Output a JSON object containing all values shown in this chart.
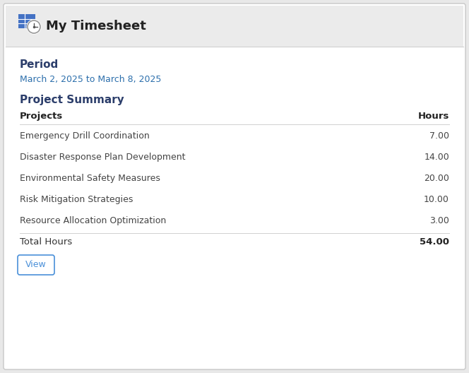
{
  "title": "My Timesheet",
  "header_bg": "#ebebeb",
  "body_bg": "#ffffff",
  "outer_bg": "#e8e8e8",
  "period_label": "Period",
  "period_date": "March 2, 2025 to March 8, 2025",
  "section_title": "Project Summary",
  "col_headers": [
    "Projects",
    "Hours"
  ],
  "projects": [
    [
      "Emergency Drill Coordination",
      "7.00"
    ],
    [
      "Disaster Response Plan Development",
      "14.00"
    ],
    [
      "Environmental Safety Measures",
      "20.00"
    ],
    [
      "Risk Mitigation Strategies",
      "10.00"
    ],
    [
      "Resource Allocation Optimization",
      "3.00"
    ]
  ],
  "total_label": "Total Hours",
  "total_value": "54.00",
  "button_label": "View",
  "blue_heading": "#2c3e6b",
  "blue_date": "#2c6fac",
  "dark_text": "#222222",
  "mid_text": "#333333",
  "light_text": "#444444",
  "button_border": "#4a90d9",
  "button_text": "#4a90d9",
  "header_border": "#d0d0d0",
  "table_border": "#d0d0d0",
  "border_color": "#c8c8c8",
  "icon_blue": "#5b9bd5",
  "icon_blue2": "#4472c4"
}
